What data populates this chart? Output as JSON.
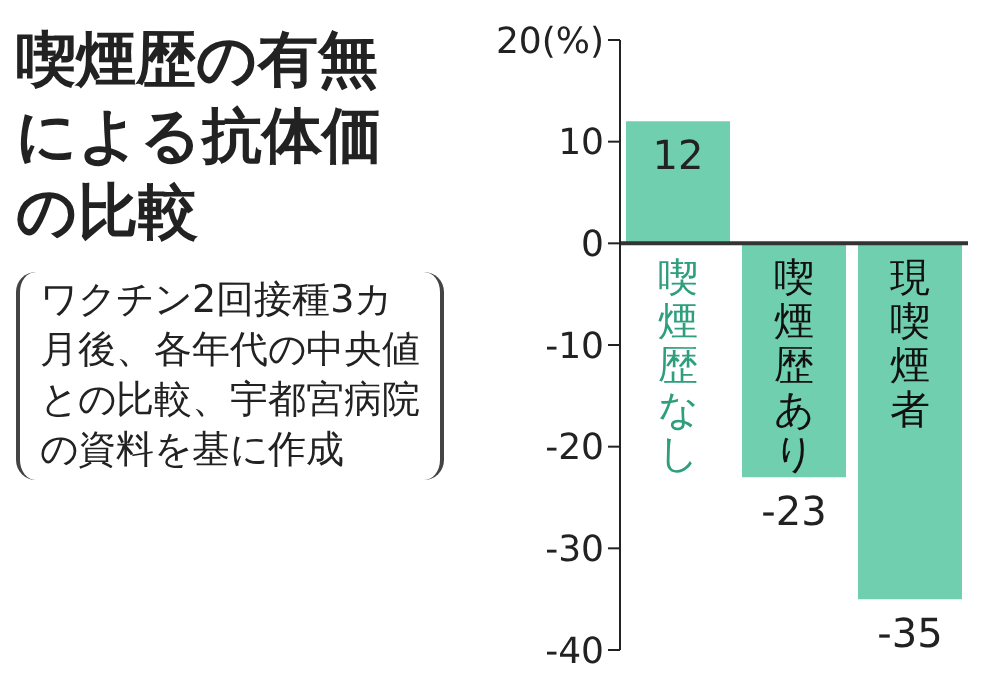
{
  "chart_data": {
    "type": "bar",
    "title": "喫煙歴の有無による抗体価の比較",
    "annotations": [
      "ワクチン2回接種3カ月後、各年代の中央値との比較、宇都宮病院の資料を基に作成"
    ],
    "categories": [
      "喫煙歴なし",
      "喫煙歴あり",
      "現喫煙者"
    ],
    "values": [
      12,
      -23,
      -35
    ],
    "color": "#6fcfae",
    "ylim": [
      -40,
      20
    ],
    "yticks": [
      {
        "value": 20,
        "label": "20(%)"
      },
      10,
      0,
      -10,
      -20,
      -30,
      -40
    ],
    "data_labels": true,
    "grid": false
  }
}
